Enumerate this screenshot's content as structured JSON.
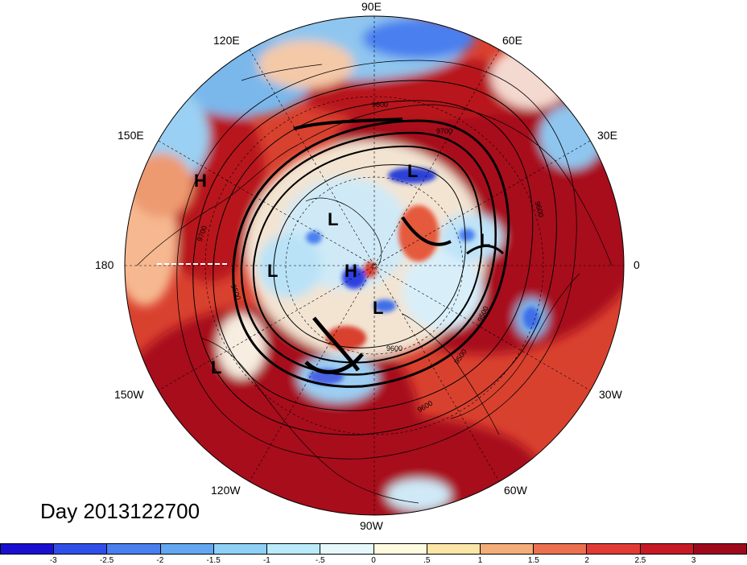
{
  "title": "Day 2013122700",
  "longitude_labels": [
    {
      "key": "90E",
      "text": "90E"
    },
    {
      "key": "60E",
      "text": "60E"
    },
    {
      "key": "120E",
      "text": "120E"
    },
    {
      "key": "30E",
      "text": "30E"
    },
    {
      "key": "150E",
      "text": "150E"
    },
    {
      "key": "180",
      "text": "180"
    },
    {
      "key": "0",
      "text": "0"
    },
    {
      "key": "150W",
      "text": "150W"
    },
    {
      "key": "30W",
      "text": "30W"
    },
    {
      "key": "120W",
      "text": "120W"
    },
    {
      "key": "60W",
      "text": "60W"
    },
    {
      "key": "90W",
      "text": "90W"
    }
  ],
  "pressure_centers": [
    "H",
    "L",
    "L",
    "L",
    "L",
    "H",
    "L",
    "L"
  ],
  "contour_labels": [
    "9600",
    "9700",
    "9500",
    "9600",
    "9500",
    "9600",
    "9500",
    "9600",
    "9700"
  ],
  "colorbar": {
    "colors": [
      "#1a0fd0",
      "#2f4fe8",
      "#4a7fef",
      "#63a7f2",
      "#8fd0f7",
      "#b9ebfb",
      "#e6f8fb",
      "#fffbe0",
      "#fbe6a8",
      "#f4ad78",
      "#ec7050",
      "#e23a35",
      "#c81a25",
      "#9e0a1c"
    ],
    "ticks": [
      "-3",
      "-2.5",
      "-2",
      "-1.5",
      "-1",
      "-.5",
      "0",
      ".5",
      "1",
      "1.5",
      "2",
      "2.5",
      "3"
    ]
  },
  "color_key": {
    "land_outline": "#000000",
    "grid": "#000000"
  }
}
